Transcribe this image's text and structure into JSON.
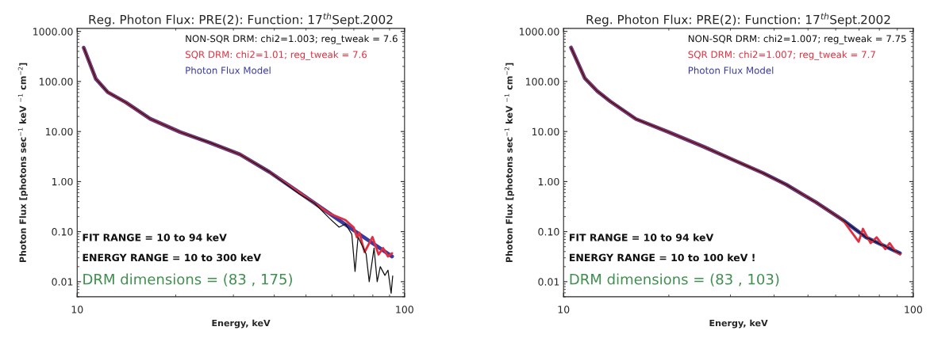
{
  "chart_data": [
    {
      "type": "line",
      "title": "Reg. Photon Flux: PRE(2): Function: 17$^{th}$Sept.2002",
      "xlabel": "Energy, keV",
      "ylabel": "Photon Flux [photons sec$^{−1}$ keV $^{−1}$ cm$^{−2}$]",
      "log": "xy",
      "xlim": [
        10,
        100
      ],
      "xticks": [
        10,
        100
      ],
      "ylim": [
        0.005,
        1150
      ],
      "yticks": [
        {
          "value": 0.01,
          "label": "0.01"
        },
        {
          "value": 0.1,
          "label": "0.10"
        },
        {
          "value": 1,
          "label": "1.00"
        },
        {
          "value": 10,
          "label": "10.00"
        },
        {
          "value": 100,
          "label": "100.00"
        },
        {
          "value": 1000,
          "label": "1000.00"
        }
      ],
      "legend": "top right",
      "grid": false,
      "series": [
        {
          "name": "NON-SQR DRM: chi2=1.003; reg_tweak = 7.6",
          "color": "#111111",
          "x": [
            10.47,
            11.4,
            12.4,
            14.1,
            16.7,
            20.6,
            25.4,
            31.4,
            38.7,
            47.8,
            53.1,
            59,
            63.1,
            66,
            69,
            70.6,
            72.1,
            76.3,
            78,
            80.7,
            82.5,
            84.3,
            87.1,
            89,
            91,
            92
          ],
          "values": [
            473,
            113,
            61,
            38,
            18,
            9.8,
            6.0,
            3.5,
            1.55,
            0.56,
            0.37,
            0.184,
            0.123,
            0.142,
            0.089,
            0.016,
            0.078,
            0.036,
            0.01,
            0.047,
            0.01,
            0.02,
            0.0134,
            0.017,
            0.0059,
            0.013
          ]
        },
        {
          "name": "SQR DRM: chi2=1.01; reg_tweak = 7.6",
          "color": "#e03040",
          "x": [
            10.47,
            11.4,
            12.4,
            14.1,
            16.7,
            20.6,
            25.4,
            31.4,
            38.7,
            47.8,
            59,
            66,
            70,
            71.5,
            72.8,
            75.5,
            79.8,
            83.3,
            86,
            89,
            91.6
          ],
          "values": [
            473,
            113,
            61,
            38,
            18,
            9.8,
            6.0,
            3.5,
            1.55,
            0.6,
            0.23,
            0.17,
            0.12,
            0.078,
            0.095,
            0.039,
            0.078,
            0.035,
            0.047,
            0.032,
            0.037
          ]
        },
        {
          "name": "Photon Flux Model",
          "color": "#3a3aa0",
          "x": [
            10.47,
            11.4,
            12.4,
            14.1,
            16.7,
            20.6,
            25.4,
            31.4,
            38.7,
            47.8,
            59,
            72.8,
            91.6
          ],
          "values": [
            473,
            113,
            61,
            38,
            18,
            9.8,
            6.0,
            3.5,
            1.55,
            0.6,
            0.23,
            0.089,
            0.032
          ]
        }
      ],
      "annotations": [
        "FIT RANGE = 10 to 94 keV",
        "ENERGY RANGE = 10 to 300 keV",
        "DRM dimensions = (83 , 175)"
      ]
    },
    {
      "type": "line",
      "title": "Reg. Photon Flux: PRE(2): Function: 17$^{th}$Sept.2002",
      "xlabel": "Energy, keV",
      "ylabel": "Photon Flux [photons sec$^{−1}$ keV $^{−1}$ cm$^{−2}$]",
      "log": "xy",
      "xlim": [
        10,
        100
      ],
      "xticks": [
        10,
        100
      ],
      "ylim": [
        0.005,
        1150
      ],
      "yticks": [
        {
          "value": 0.01,
          "label": "0.01"
        },
        {
          "value": 0.1,
          "label": "0.10"
        },
        {
          "value": 1,
          "label": "1.00"
        },
        {
          "value": 10,
          "label": "10.00"
        },
        {
          "value": 100,
          "label": "100.00"
        },
        {
          "value": 1000,
          "label": "1000.00"
        }
      ],
      "legend": "top right",
      "grid": false,
      "series": [
        {
          "name": "NON-SQR DRM: chi2=1.007; reg_tweak = 7.75",
          "color": "#111111",
          "x": [
            10.5,
            11.5,
            12.5,
            13.6,
            16.1,
            20,
            25.2,
            30.6,
            37.2,
            43.4,
            52.7,
            62.8,
            73.3,
            91.6
          ],
          "values": [
            477,
            116,
            63.7,
            40,
            17.8,
            9.7,
            4.95,
            2.7,
            1.48,
            0.865,
            0.386,
            0.172,
            0.077,
            0.037
          ]
        },
        {
          "name": "SQR DRM: chi2=1.007; reg_tweak = 7.7",
          "color": "#e03040",
          "x": [
            10.5,
            11.5,
            12.5,
            13.6,
            16.1,
            20,
            25.2,
            30.6,
            37.2,
            43.4,
            52.7,
            62.8,
            69.8,
            71.8,
            75.5,
            78.6,
            83.2,
            85.6,
            89,
            91.6
          ],
          "values": [
            477,
            116,
            63.7,
            40,
            17.8,
            9.7,
            4.95,
            2.7,
            1.48,
            0.865,
            0.386,
            0.172,
            0.063,
            0.114,
            0.059,
            0.077,
            0.045,
            0.059,
            0.04,
            0.035
          ]
        },
        {
          "name": "Photon Flux Model",
          "color": "#3a3aa0",
          "x": [
            10.5,
            11.5,
            12.5,
            13.6,
            16.1,
            20,
            25.2,
            30.6,
            37.2,
            43.4,
            52.7,
            62.8,
            73.3,
            91.6
          ],
          "values": [
            477,
            116,
            63.7,
            40,
            17.8,
            9.7,
            4.95,
            2.7,
            1.48,
            0.865,
            0.386,
            0.172,
            0.077,
            0.037
          ]
        }
      ],
      "annotations": [
        "FIT RANGE = 10 to 94 keV",
        "ENERGY RANGE = 10 to 100 keV !",
        "DRM dimensions = (83 , 103)"
      ]
    }
  ]
}
